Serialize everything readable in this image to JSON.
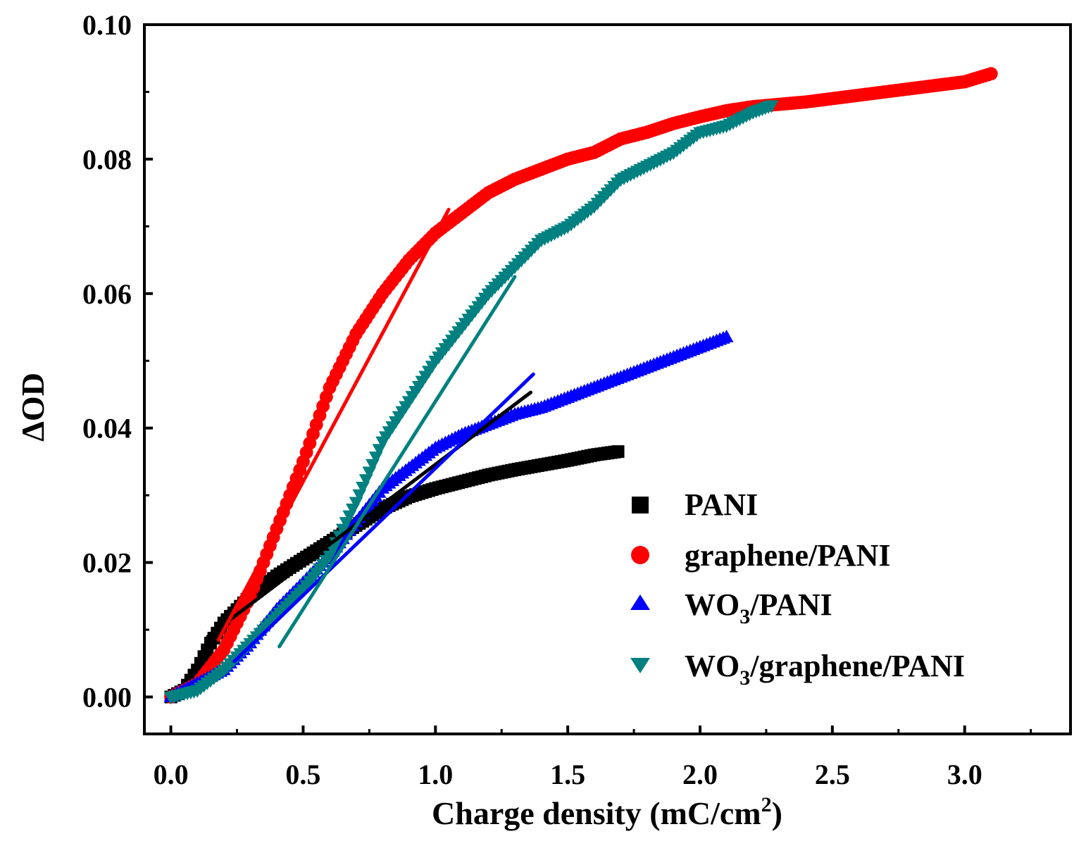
{
  "chart_data": {
    "type": "scatter",
    "title": "",
    "xlabel": "Charge density (mC/cm",
    "xlabel_sup": "2",
    "xlabel_close": ")",
    "ylabel": "ΔOD",
    "xlim": [
      -0.1,
      3.4
    ],
    "ylim": [
      -0.0055,
      0.1
    ],
    "x_ticks": [
      0.0,
      0.5,
      1.0,
      1.5,
      2.0,
      2.5,
      3.0
    ],
    "x_tick_labels": [
      "0.0",
      "0.5",
      "1.0",
      "1.5",
      "2.0",
      "2.5",
      "3.0"
    ],
    "y_ticks": [
      0.0,
      0.02,
      0.04,
      0.06,
      0.08,
      0.1
    ],
    "y_tick_labels": [
      "0.00",
      "0.02",
      "0.04",
      "0.06",
      "0.08",
      "0.10"
    ],
    "grid": false,
    "legend_position": "center-right",
    "series": [
      {
        "name": "PANI",
        "color": "#000000",
        "marker": "square",
        "points": [
          [
            0,
            0
          ],
          [
            0.05,
            0.001
          ],
          [
            0.1,
            0.004
          ],
          [
            0.15,
            0.008
          ],
          [
            0.2,
            0.011
          ],
          [
            0.3,
            0.015
          ],
          [
            0.4,
            0.018
          ],
          [
            0.5,
            0.0205
          ],
          [
            0.6,
            0.023
          ],
          [
            0.7,
            0.0255
          ],
          [
            0.8,
            0.028
          ],
          [
            0.9,
            0.0298
          ],
          [
            1.0,
            0.031
          ],
          [
            1.1,
            0.032
          ],
          [
            1.2,
            0.033
          ],
          [
            1.3,
            0.0338
          ],
          [
            1.4,
            0.0345
          ],
          [
            1.5,
            0.0352
          ],
          [
            1.6,
            0.036
          ],
          [
            1.69,
            0.0365
          ]
        ],
        "fit": [
          [
            0.14,
            0.009
          ],
          [
            1.36,
            0.0453
          ]
        ]
      },
      {
        "name": "graphene/PANI",
        "color": "#ff0000",
        "marker": "circle",
        "points": [
          [
            0,
            0
          ],
          [
            0.1,
            0.002
          ],
          [
            0.2,
            0.007
          ],
          [
            0.3,
            0.015
          ],
          [
            0.4,
            0.025
          ],
          [
            0.5,
            0.035
          ],
          [
            0.6,
            0.046
          ],
          [
            0.7,
            0.054
          ],
          [
            0.8,
            0.06
          ],
          [
            0.9,
            0.065
          ],
          [
            1.0,
            0.069
          ],
          [
            1.1,
            0.072
          ],
          [
            1.2,
            0.075
          ],
          [
            1.3,
            0.077
          ],
          [
            1.4,
            0.0785
          ],
          [
            1.5,
            0.08
          ],
          [
            1.6,
            0.081
          ],
          [
            1.7,
            0.083
          ],
          [
            1.8,
            0.084
          ],
          [
            1.9,
            0.0853
          ],
          [
            2.0,
            0.0863
          ],
          [
            2.1,
            0.0872
          ],
          [
            2.2,
            0.0878
          ],
          [
            2.4,
            0.0885
          ],
          [
            2.6,
            0.0895
          ],
          [
            2.8,
            0.0905
          ],
          [
            3.0,
            0.0915
          ],
          [
            3.1,
            0.0927
          ]
        ],
        "fit": [
          [
            0.18,
            0.0085
          ],
          [
            1.05,
            0.0725
          ]
        ]
      },
      {
        "name": "WO3/PANI",
        "legend_main": "WO",
        "legend_sub": "3",
        "legend_rest": "/PANI",
        "color": "#0000ff",
        "marker": "triangle-up",
        "points": [
          [
            0,
            0
          ],
          [
            0.1,
            0.002
          ],
          [
            0.2,
            0.004
          ],
          [
            0.3,
            0.008
          ],
          [
            0.4,
            0.013
          ],
          [
            0.5,
            0.017
          ],
          [
            0.6,
            0.021
          ],
          [
            0.7,
            0.026
          ],
          [
            0.8,
            0.031
          ],
          [
            0.9,
            0.034
          ],
          [
            1.0,
            0.037
          ],
          [
            1.1,
            0.039
          ],
          [
            1.2,
            0.0405
          ],
          [
            1.3,
            0.042
          ],
          [
            1.4,
            0.043
          ],
          [
            1.5,
            0.0445
          ],
          [
            1.6,
            0.046
          ],
          [
            1.7,
            0.0475
          ],
          [
            1.8,
            0.049
          ],
          [
            1.9,
            0.0505
          ],
          [
            2.0,
            0.052
          ],
          [
            2.1,
            0.0535
          ]
        ],
        "fit": [
          [
            0.24,
            0.0053
          ],
          [
            1.37,
            0.048
          ]
        ]
      },
      {
        "name": "WO3/graphene/PANI",
        "legend_main": "WO",
        "legend_sub": "3",
        "legend_rest": "/graphene/PANI",
        "color": "#008080",
        "marker": "triangle-down",
        "points": [
          [
            0,
            0
          ],
          [
            0.1,
            0.001
          ],
          [
            0.2,
            0.004
          ],
          [
            0.3,
            0.008
          ],
          [
            0.4,
            0.012
          ],
          [
            0.5,
            0.016
          ],
          [
            0.6,
            0.021
          ],
          [
            0.7,
            0.029
          ],
          [
            0.8,
            0.038
          ],
          [
            0.9,
            0.044
          ],
          [
            1.0,
            0.05
          ],
          [
            1.1,
            0.055
          ],
          [
            1.2,
            0.06
          ],
          [
            1.3,
            0.064
          ],
          [
            1.4,
            0.068
          ],
          [
            1.5,
            0.07
          ],
          [
            1.6,
            0.073
          ],
          [
            1.7,
            0.077
          ],
          [
            1.8,
            0.079
          ],
          [
            1.9,
            0.081
          ],
          [
            2.0,
            0.084
          ],
          [
            2.1,
            0.085
          ],
          [
            2.2,
            0.087
          ],
          [
            2.27,
            0.088
          ]
        ],
        "fit": [
          [
            0.41,
            0.0075
          ],
          [
            1.3,
            0.0625
          ]
        ]
      }
    ]
  }
}
